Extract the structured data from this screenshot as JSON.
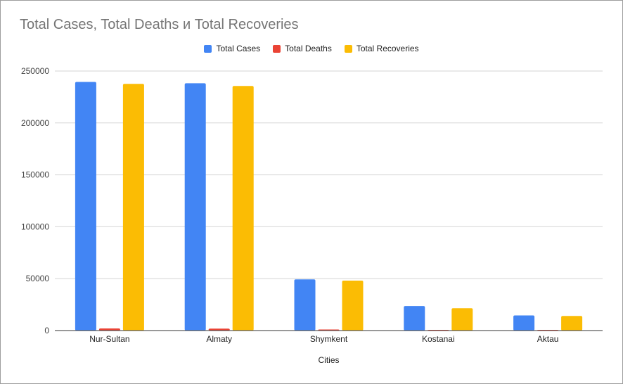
{
  "chart_data": {
    "type": "bar",
    "title": "Total Cases, Total Deaths и Total Recoveries",
    "xlabel": "Cities",
    "ylabel": "",
    "categories": [
      "Nur-Sultan",
      "Almaty",
      "Shymkent",
      "Kostanai",
      "Aktau"
    ],
    "series": [
      {
        "name": "Total Cases",
        "color": "#4285f4",
        "values": [
          239500,
          238200,
          49300,
          23600,
          14600
        ]
      },
      {
        "name": "Total Deaths",
        "color": "#ea4335",
        "values": [
          2000,
          1900,
          1000,
          400,
          300
        ]
      },
      {
        "name": "Total Recoveries",
        "color": "#fbbc04",
        "values": [
          237600,
          235600,
          48100,
          21500,
          14100
        ]
      }
    ],
    "ylim": [
      0,
      250000
    ],
    "yticks": [
      "0",
      "50000",
      "100000",
      "150000",
      "200000",
      "250000"
    ],
    "grid": true,
    "legend_position": "top-center"
  }
}
